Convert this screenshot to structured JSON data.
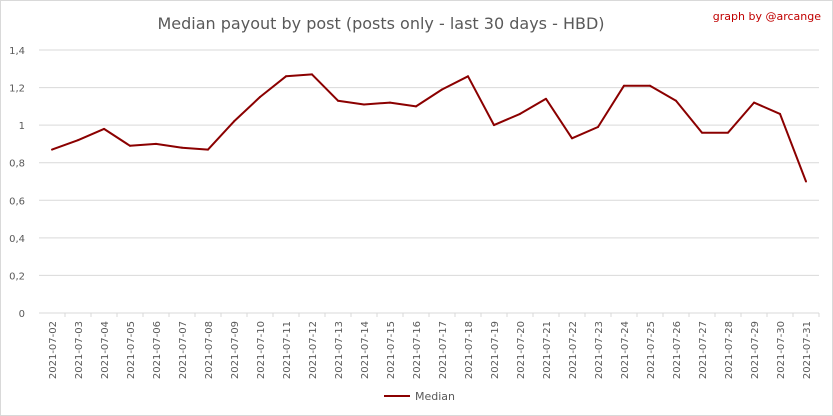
{
  "chart_data": {
    "type": "line",
    "title": "Median payout by post (posts only - last 30 days - HBD)",
    "credit": "graph by @arcange",
    "xlabel": "",
    "ylabel": "",
    "ylim": [
      0,
      1.4
    ],
    "ytick_values": [
      0,
      0.2,
      0.4,
      0.6,
      0.8,
      1,
      1.2,
      1.4
    ],
    "ytick_labels": [
      "0",
      "0,2",
      "0,4",
      "0,6",
      "0,8",
      "1",
      "1,2",
      "1,4"
    ],
    "grid": true,
    "legend_position": "bottom",
    "categories": [
      "2021-07-02",
      "2021-07-03",
      "2021-07-04",
      "2021-07-05",
      "2021-07-06",
      "2021-07-07",
      "2021-07-08",
      "2021-07-09",
      "2021-07-10",
      "2021-07-11",
      "2021-07-12",
      "2021-07-13",
      "2021-07-14",
      "2021-07-15",
      "2021-07-16",
      "2021-07-17",
      "2021-07-18",
      "2021-07-19",
      "2021-07-20",
      "2021-07-21",
      "2021-07-22",
      "2021-07-23",
      "2021-07-24",
      "2021-07-25",
      "2021-07-26",
      "2021-07-27",
      "2021-07-28",
      "2021-07-29",
      "2021-07-30",
      "2021-07-31"
    ],
    "series": [
      {
        "name": "Median",
        "color": "#8b0000",
        "values": [
          0.87,
          0.92,
          0.98,
          0.89,
          0.9,
          0.88,
          0.87,
          1.02,
          1.15,
          1.26,
          1.27,
          1.13,
          1.11,
          1.12,
          1.1,
          1.19,
          1.26,
          1.0,
          1.06,
          1.14,
          0.93,
          0.99,
          1.21,
          1.21,
          1.13,
          0.96,
          0.96,
          1.12,
          1.06,
          0.7
        ]
      }
    ]
  },
  "colors": {
    "title": "#595959",
    "credit": "#c00000",
    "grid": "#d9d9d9",
    "axis_text": "#595959"
  }
}
